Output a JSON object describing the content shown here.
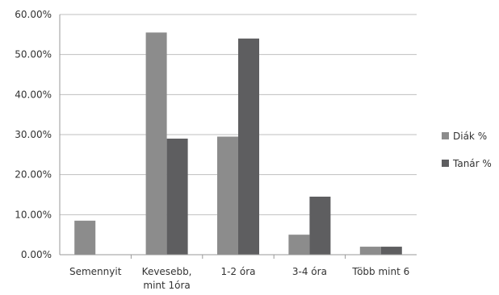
{
  "chart_data": {
    "type": "bar",
    "categories": [
      [
        "Semennyit"
      ],
      [
        "Kevesebb,",
        "mint 1óra"
      ],
      [
        "1-2 óra"
      ],
      [
        "3-4 óra"
      ],
      [
        "Több mint 6"
      ]
    ],
    "series": [
      {
        "name": "Diák %",
        "color": "#8c8c8c",
        "values": [
          8.5,
          55.5,
          29.5,
          5.0,
          2.0
        ]
      },
      {
        "name": "Tanár %",
        "color": "#5e5e60",
        "values": [
          0.0,
          29.0,
          54.0,
          14.5,
          2.0
        ]
      }
    ],
    "ylim": [
      0,
      60
    ],
    "yticks": [
      "0.00%",
      "10.00%",
      "20.00%",
      "30.00%",
      "40.00%",
      "50.00%",
      "60.00%"
    ],
    "ytick_values": [
      0,
      10,
      20,
      30,
      40,
      50,
      60
    ],
    "grid": true,
    "legend_position": "right",
    "title": "",
    "xlabel": "",
    "ylabel": ""
  }
}
